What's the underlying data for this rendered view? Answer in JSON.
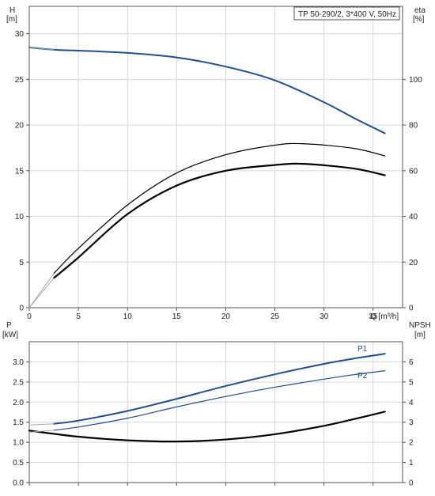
{
  "chart_data": [
    {
      "type": "line",
      "panel": "top",
      "title": "TP 50-290/2, 3*400 V, 50Hz",
      "xlabel": "Q [m³/h]",
      "ylabel_left_line1": "H",
      "ylabel_left_line2": "[m]",
      "ylabel_right_line1": "eta",
      "ylabel_right_line2": "[%]",
      "xlim": [
        0,
        38
      ],
      "ylim_left": [
        0,
        33
      ],
      "ylim_right": [
        0,
        132
      ],
      "xticks": [
        "0",
        "5",
        "10",
        "15",
        "20",
        "25",
        "30",
        "35"
      ],
      "yticks_left": [
        "0",
        "5",
        "10",
        "15",
        "20",
        "25",
        "30"
      ],
      "yticks_right": [
        "0",
        "20",
        "40",
        "60",
        "80",
        "100"
      ],
      "grid": true,
      "series": [
        {
          "role": "head",
          "axis": "left",
          "color": "#1f4e8c",
          "width": 2,
          "x": [
            0,
            2.5,
            5,
            10,
            15,
            20,
            25,
            30,
            33,
            36.2
          ],
          "y": [
            28.5,
            28.25,
            28.15,
            27.9,
            27.4,
            26.4,
            24.9,
            22.5,
            20.8,
            19.1
          ]
        },
        {
          "role": "head-extension",
          "axis": "left",
          "color": "#8a9bb5",
          "width": 1,
          "x": [
            0,
            2.5
          ],
          "y": [
            28.5,
            28.25
          ]
        },
        {
          "role": "eta-pump",
          "axis": "right",
          "color": "#000000",
          "width": 1.2,
          "x": [
            2.5,
            5,
            10,
            15,
            20,
            25,
            28,
            33,
            36.2
          ],
          "y": [
            15,
            26,
            45,
            59,
            67,
            71.2,
            71.8,
            69.8,
            66.5
          ]
        },
        {
          "role": "eta-pump-extension",
          "axis": "right",
          "color": "#aaaaaa",
          "width": 1,
          "x": [
            0,
            2.5
          ],
          "y": [
            0,
            15
          ]
        },
        {
          "role": "eta-total",
          "axis": "right",
          "color": "#000000",
          "width": 2.2,
          "x": [
            2.5,
            5,
            10,
            15,
            20,
            25,
            28,
            33,
            36.2
          ],
          "y": [
            13,
            22,
            41,
            53.5,
            60,
            62.5,
            63,
            61,
            58
          ]
        },
        {
          "role": "eta-total-extension",
          "axis": "right",
          "color": "#aaaaaa",
          "width": 1,
          "x": [
            0,
            2.5
          ],
          "y": [
            0,
            13
          ]
        }
      ]
    },
    {
      "type": "line",
      "panel": "bottom",
      "ylabel_left_line1": "P",
      "ylabel_left_line2": "[kW]",
      "ylabel_right_line1": "NPSH",
      "ylabel_right_line2": "[m]",
      "xlim": [
        0,
        38
      ],
      "ylim_left": [
        0,
        3.5
      ],
      "ylim_right": [
        0,
        7
      ],
      "yticks_left": [
        "0.0",
        "0.5",
        "1.0",
        "1.5",
        "2.0",
        "2.5",
        "3.0"
      ],
      "yticks_right": [
        "0",
        "1",
        "2",
        "3",
        "4",
        "5",
        "6"
      ],
      "grid": true,
      "series": [
        {
          "name": "P1",
          "axis": "left",
          "color": "#1f4e8c",
          "width": 2,
          "x": [
            2.5,
            5,
            10,
            15,
            20,
            25,
            30,
            33,
            36.2
          ],
          "y": [
            1.46,
            1.54,
            1.78,
            2.08,
            2.4,
            2.69,
            2.95,
            3.08,
            3.2
          ]
        },
        {
          "name": "P2",
          "axis": "left",
          "color": "#1f4e8c",
          "width": 1.2,
          "x": [
            2.5,
            5,
            10,
            15,
            20,
            25,
            30,
            33,
            36.2
          ],
          "y": [
            1.3,
            1.38,
            1.6,
            1.88,
            2.14,
            2.37,
            2.57,
            2.68,
            2.78
          ]
        },
        {
          "role": "npsh",
          "axis": "right",
          "color": "#000000",
          "width": 2.2,
          "x": [
            0,
            5,
            10,
            15,
            20,
            25,
            30,
            33,
            36.2
          ],
          "y": [
            2.58,
            2.28,
            2.1,
            2.04,
            2.14,
            2.4,
            2.82,
            3.15,
            3.52
          ]
        },
        {
          "role": "p1-extension",
          "axis": "left",
          "color": "#aaaaaa",
          "width": 1,
          "x": [
            0,
            2.5
          ],
          "y": [
            1.43,
            1.46
          ]
        },
        {
          "role": "p2-extension",
          "axis": "left",
          "color": "#aaaaaa",
          "width": 1,
          "x": [
            0,
            2.5
          ],
          "y": [
            1.25,
            1.3
          ]
        }
      ]
    }
  ]
}
